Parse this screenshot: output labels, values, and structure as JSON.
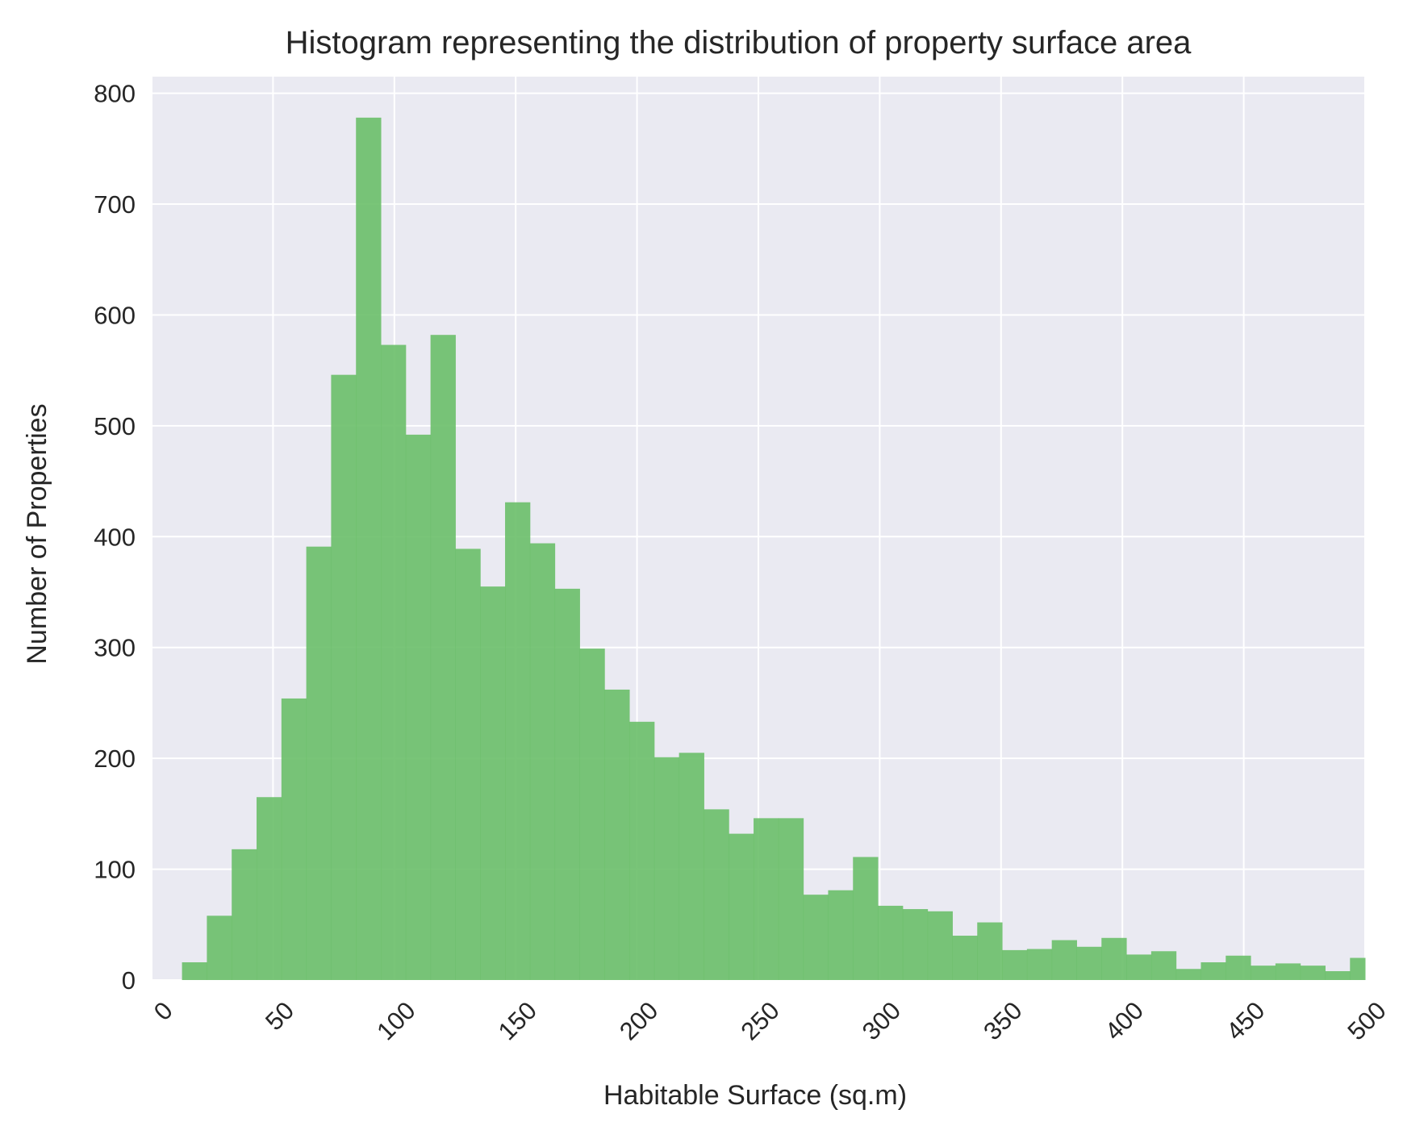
{
  "chart_data": {
    "type": "bar",
    "subtype": "histogram",
    "title": "Histogram representing the distribution of property surface area",
    "xlabel": "Habitable Surface (sq.m)",
    "ylabel": "Number of Properties",
    "xlim": [
      0,
      500
    ],
    "ylim": [
      0,
      815
    ],
    "xticks": [
      "0",
      "50",
      "100",
      "150",
      "200",
      "250",
      "300",
      "350",
      "400",
      "450",
      "500"
    ],
    "xtick_values": [
      0,
      50,
      100,
      150,
      200,
      250,
      300,
      350,
      400,
      450,
      500
    ],
    "yticks": [
      "0",
      "100",
      "200",
      "300",
      "400",
      "500",
      "600",
      "700",
      "800"
    ],
    "ytick_values": [
      0,
      100,
      200,
      300,
      400,
      500,
      600,
      700,
      800
    ],
    "bin_width": 10.24,
    "bin_start": 12.5,
    "values": [
      16,
      58,
      118,
      165,
      254,
      391,
      546,
      778,
      573,
      492,
      582,
      389,
      355,
      431,
      394,
      353,
      299,
      262,
      233,
      201,
      205,
      154,
      132,
      146,
      146,
      77,
      81,
      111,
      67,
      64,
      62,
      40,
      52,
      27,
      28,
      36,
      30,
      38,
      23,
      26,
      10,
      16,
      22,
      13,
      15,
      13,
      8,
      20
    ],
    "grid": true,
    "legend": "none",
    "colors": {
      "bar": "#6abf69",
      "background": "#eaeaf2",
      "grid": "#ffffff",
      "text": "#262626"
    }
  }
}
